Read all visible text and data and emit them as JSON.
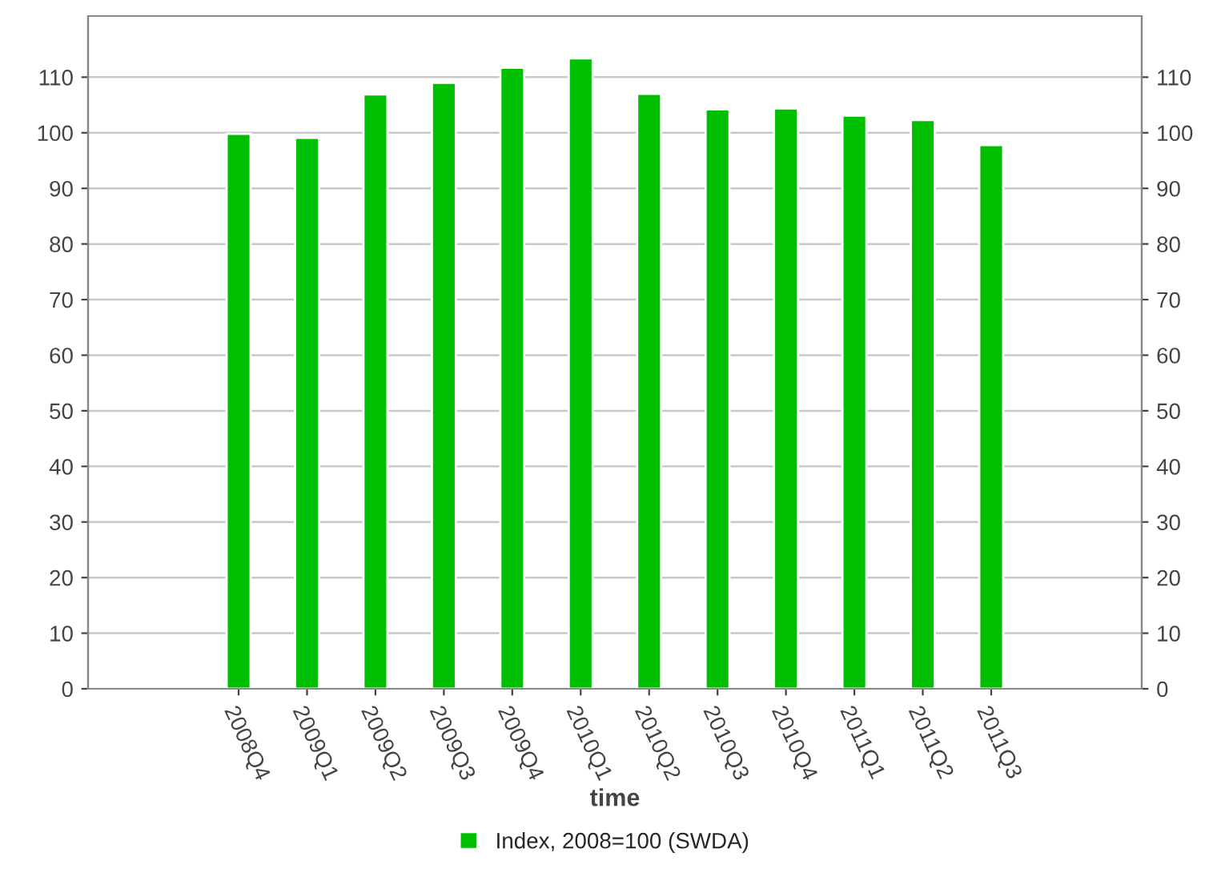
{
  "chart_data": {
    "type": "bar",
    "xlabel": "time",
    "categories": [
      "2008Q4",
      "2009Q1",
      "2009Q2",
      "2009Q3",
      "2009Q4",
      "2010Q1",
      "2010Q2",
      "2010Q3",
      "2010Q4",
      "2011Q1",
      "2011Q2",
      "2011Q3"
    ],
    "series": [
      {
        "name": "Index, 2008=100 (SWDA)",
        "color": "#00bf00",
        "values": [
          99.8,
          99.1,
          106.9,
          109.0,
          111.7,
          113.4,
          107.0,
          104.2,
          104.4,
          103.1,
          102.3,
          97.8
        ]
      }
    ],
    "ylim": [
      0,
      121
    ],
    "yticks": [
      0,
      10,
      20,
      30,
      40,
      50,
      60,
      70,
      80,
      90,
      100,
      110
    ],
    "y2lim": [
      0,
      121
    ],
    "y2ticks": [
      0,
      10,
      20,
      30,
      40,
      50,
      60,
      70,
      80,
      90,
      100,
      110
    ],
    "grid": "y",
    "legend": "bottom"
  }
}
